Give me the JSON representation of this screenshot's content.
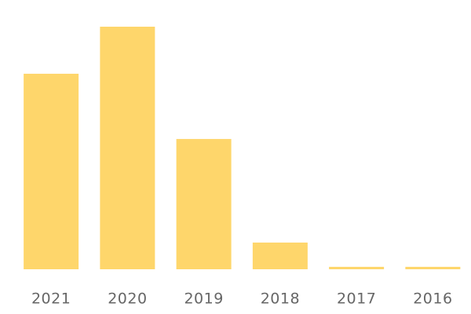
{
  "chart_data": {
    "type": "bar",
    "categories": [
      "2021",
      "2020",
      "2019",
      "2018",
      "2017",
      "2016"
    ],
    "values": [
      80.6,
      100,
      53.7,
      11,
      1,
      1
    ],
    "color": "#fed66b"
  }
}
